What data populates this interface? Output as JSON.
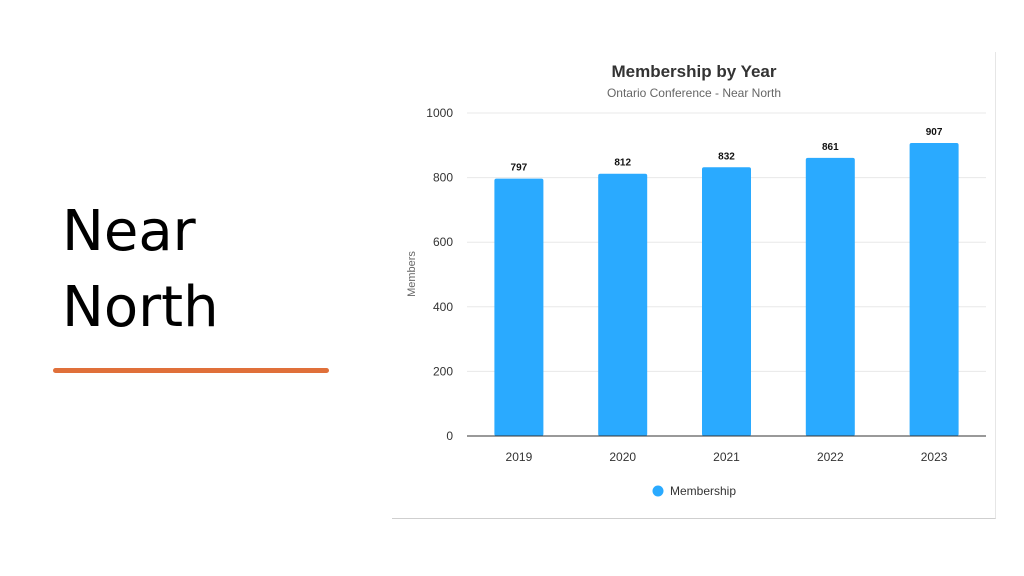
{
  "slide": {
    "title_line1": "Near",
    "title_line2": "North",
    "accent_color": "#e0703a"
  },
  "chart_data": {
    "type": "bar",
    "title": "Membership by Year",
    "subtitle": "Ontario Conference - Near North",
    "categories": [
      "2019",
      "2020",
      "2021",
      "2022",
      "2023"
    ],
    "series": [
      {
        "name": "Membership",
        "values": [
          797,
          812,
          832,
          861,
          907
        ],
        "color": "#2aaaff"
      }
    ],
    "xlabel": "",
    "ylabel": "Members",
    "ylim": [
      0,
      1000
    ],
    "yticks": [
      0,
      200,
      400,
      600,
      800,
      1000
    ],
    "grid": true,
    "data_labels": true,
    "legend_position": "bottom-center"
  }
}
